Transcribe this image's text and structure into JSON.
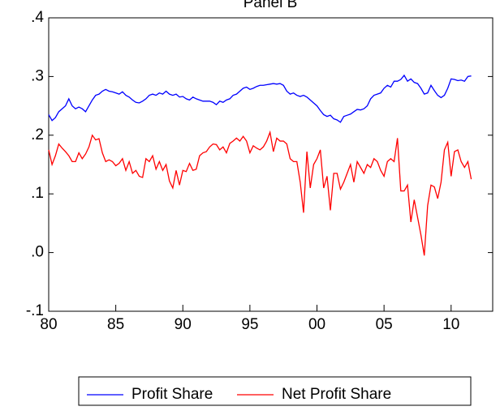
{
  "chart_data": {
    "type": "line",
    "title": "Panel B",
    "x": [
      1980,
      1980.25,
      1980.5,
      1980.75,
      1981,
      1981.25,
      1981.5,
      1981.75,
      1982,
      1982.25,
      1982.5,
      1982.75,
      1983,
      1983.25,
      1983.5,
      1983.75,
      1984,
      1984.25,
      1984.5,
      1984.75,
      1985,
      1985.25,
      1985.5,
      1985.75,
      1986,
      1986.25,
      1986.5,
      1986.75,
      1987,
      1987.25,
      1987.5,
      1987.75,
      1988,
      1988.25,
      1988.5,
      1988.75,
      1989,
      1989.25,
      1989.5,
      1989.75,
      1990,
      1990.25,
      1990.5,
      1990.75,
      1991,
      1991.25,
      1991.5,
      1991.75,
      1992,
      1992.25,
      1992.5,
      1992.75,
      1993,
      1993.25,
      1993.5,
      1993.75,
      1994,
      1994.25,
      1994.5,
      1994.75,
      1995,
      1995.25,
      1995.5,
      1995.75,
      1996,
      1996.25,
      1996.5,
      1996.75,
      1997,
      1997.25,
      1997.5,
      1997.75,
      1998,
      1998.25,
      1998.5,
      1998.75,
      1999,
      1999.25,
      1999.5,
      1999.75,
      2000,
      2000.25,
      2000.5,
      2000.75,
      2001,
      2001.25,
      2001.5,
      2001.75,
      2002,
      2002.25,
      2002.5,
      2002.75,
      2003,
      2003.25,
      2003.5,
      2003.75,
      2004,
      2004.25,
      2004.5,
      2004.75,
      2005,
      2005.25,
      2005.5,
      2005.75,
      2006,
      2006.25,
      2006.5,
      2006.75,
      2007,
      2007.25,
      2007.5,
      2007.75,
      2008,
      2008.25,
      2008.5,
      2008.75,
      2009,
      2009.25,
      2009.5,
      2009.75,
      2010,
      2010.25,
      2010.5,
      2010.75,
      2011,
      2011.25,
      2011.5
    ],
    "series": [
      {
        "name": "Profit Share",
        "color": "#0000ff",
        "values": [
          0.235,
          0.225,
          0.23,
          0.24,
          0.245,
          0.25,
          0.262,
          0.25,
          0.245,
          0.248,
          0.245,
          0.24,
          0.25,
          0.26,
          0.268,
          0.27,
          0.275,
          0.278,
          0.275,
          0.274,
          0.272,
          0.27,
          0.274,
          0.268,
          0.265,
          0.26,
          0.256,
          0.255,
          0.258,
          0.262,
          0.268,
          0.27,
          0.268,
          0.272,
          0.27,
          0.275,
          0.27,
          0.268,
          0.27,
          0.265,
          0.266,
          0.262,
          0.26,
          0.265,
          0.262,
          0.26,
          0.258,
          0.258,
          0.258,
          0.256,
          0.252,
          0.258,
          0.256,
          0.26,
          0.262,
          0.268,
          0.27,
          0.275,
          0.28,
          0.282,
          0.278,
          0.28,
          0.283,
          0.285,
          0.285,
          0.286,
          0.287,
          0.288,
          0.287,
          0.288,
          0.285,
          0.275,
          0.27,
          0.272,
          0.268,
          0.266,
          0.268,
          0.265,
          0.26,
          0.255,
          0.25,
          0.242,
          0.235,
          0.232,
          0.234,
          0.228,
          0.226,
          0.222,
          0.232,
          0.234,
          0.236,
          0.24,
          0.244,
          0.243,
          0.245,
          0.25,
          0.262,
          0.268,
          0.27,
          0.272,
          0.28,
          0.285,
          0.282,
          0.292,
          0.292,
          0.295,
          0.302,
          0.292,
          0.296,
          0.29,
          0.288,
          0.28,
          0.27,
          0.272,
          0.285,
          0.276,
          0.268,
          0.264,
          0.268,
          0.28,
          0.296,
          0.295,
          0.293,
          0.294,
          0.292,
          0.3,
          0.301
        ]
      },
      {
        "name": "Net Profit Share",
        "color": "#ff0000",
        "values": [
          0.175,
          0.15,
          0.165,
          0.185,
          0.178,
          0.172,
          0.165,
          0.155,
          0.155,
          0.17,
          0.16,
          0.168,
          0.18,
          0.2,
          0.192,
          0.194,
          0.17,
          0.155,
          0.158,
          0.155,
          0.148,
          0.152,
          0.16,
          0.14,
          0.155,
          0.135,
          0.14,
          0.13,
          0.128,
          0.16,
          0.155,
          0.165,
          0.142,
          0.155,
          0.14,
          0.15,
          0.122,
          0.11,
          0.14,
          0.115,
          0.14,
          0.138,
          0.152,
          0.14,
          0.142,
          0.165,
          0.17,
          0.172,
          0.18,
          0.185,
          0.184,
          0.175,
          0.18,
          0.17,
          0.186,
          0.19,
          0.195,
          0.19,
          0.198,
          0.19,
          0.17,
          0.182,
          0.178,
          0.175,
          0.18,
          0.19,
          0.205,
          0.172,
          0.195,
          0.19,
          0.19,
          0.185,
          0.16,
          0.155,
          0.155,
          0.12,
          0.068,
          0.172,
          0.11,
          0.15,
          0.16,
          0.175,
          0.11,
          0.13,
          0.072,
          0.135,
          0.135,
          0.108,
          0.12,
          0.135,
          0.15,
          0.12,
          0.155,
          0.145,
          0.135,
          0.15,
          0.145,
          0.16,
          0.155,
          0.14,
          0.13,
          0.155,
          0.16,
          0.155,
          0.195,
          0.105,
          0.105,
          0.115,
          0.052,
          0.09,
          0.06,
          0.03,
          -0.005,
          0.08,
          0.115,
          0.112,
          0.092,
          0.12,
          0.175,
          0.188,
          0.13,
          0.172,
          0.175,
          0.155,
          0.145,
          0.155,
          0.125
        ]
      }
    ],
    "xlim": [
      1980,
      2013.1
    ],
    "xticks": [
      {
        "value": 1980,
        "label": "80"
      },
      {
        "value": 1985,
        "label": "85"
      },
      {
        "value": 1990,
        "label": "90"
      },
      {
        "value": 1995,
        "label": "95"
      },
      {
        "value": 2000,
        "label": "00"
      },
      {
        "value": 2005,
        "label": "05"
      },
      {
        "value": 2010,
        "label": "10"
      }
    ],
    "ylim": [
      -0.1,
      0.4
    ],
    "yticks": [
      {
        "value": -0.1,
        "label": "-.1"
      },
      {
        "value": 0,
        "label": ".0"
      },
      {
        "value": 0.1,
        "label": ".1"
      },
      {
        "value": 0.2,
        "label": ".2"
      },
      {
        "value": 0.3,
        "label": ".3"
      },
      {
        "value": 0.4,
        "label": ".4"
      }
    ],
    "grid": false
  }
}
